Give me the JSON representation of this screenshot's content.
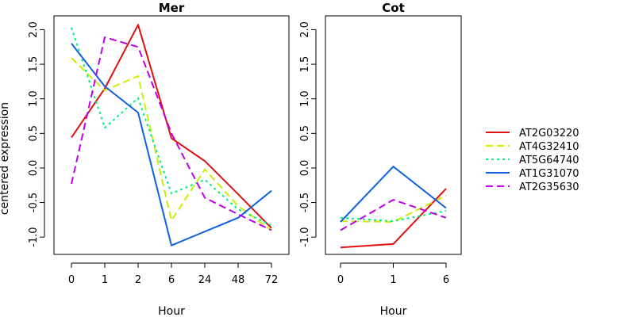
{
  "chart_data": [
    {
      "type": "line",
      "title": "Mer",
      "xlabel": "Hour",
      "ylabel": "centered expression",
      "categories": [
        "0",
        "1",
        "2",
        "6",
        "24",
        "48",
        "72"
      ],
      "ylim": [
        -1.25,
        2.2
      ],
      "yticks": [
        "-1.0",
        "-0.5",
        "0.0",
        "0.5",
        "1.0",
        "1.5",
        "2.0"
      ],
      "series": [
        {
          "name": "AT2G03220",
          "values": [
            0.44,
            1.15,
            2.07,
            0.43,
            0.1,
            -0.38,
            -0.87
          ]
        },
        {
          "name": "AT4G32410",
          "values": [
            1.59,
            1.12,
            1.33,
            -0.76,
            -0.02,
            -0.55,
            -0.9
          ]
        },
        {
          "name": "AT5G64740",
          "values": [
            2.03,
            0.58,
            1.01,
            -0.37,
            -0.17,
            -0.6,
            -0.83
          ]
        },
        {
          "name": "AT1G31070",
          "values": [
            1.8,
            1.18,
            0.8,
            -1.12,
            -0.92,
            -0.72,
            -0.33
          ]
        },
        {
          "name": "AT2G35630",
          "values": [
            -0.23,
            1.89,
            1.75,
            0.5,
            -0.43,
            -0.67,
            -0.9
          ]
        }
      ]
    },
    {
      "type": "line",
      "title": "Cot",
      "xlabel": "Hour",
      "categories": [
        "0",
        "1",
        "6"
      ],
      "ylim": [
        -1.25,
        2.2
      ],
      "yticks": [
        "-1.0",
        "-0.5",
        "0.0",
        "0.5",
        "1.0",
        "1.5",
        "2.0"
      ],
      "series": [
        {
          "name": "AT2G03220",
          "values": [
            -1.15,
            -1.1,
            -0.3
          ]
        },
        {
          "name": "AT4G32410",
          "values": [
            -0.77,
            -0.78,
            -0.4
          ]
        },
        {
          "name": "AT5G64740",
          "values": [
            -0.72,
            -0.77,
            -0.62
          ]
        },
        {
          "name": "AT1G31070",
          "values": [
            -0.78,
            0.02,
            -0.58
          ]
        },
        {
          "name": "AT2G35630",
          "values": [
            -0.9,
            -0.46,
            -0.72
          ]
        }
      ]
    }
  ],
  "legend": {
    "placement": "right",
    "items": [
      {
        "label": "AT2G03220",
        "color": "#e01010",
        "dash": "solid"
      },
      {
        "label": "AT4G32410",
        "color": "#c8f000",
        "dash": "dashed"
      },
      {
        "label": "AT5G64740",
        "color": "#00f080",
        "dash": "dotted"
      },
      {
        "label": "AT1G31070",
        "color": "#1060e0",
        "dash": "solid"
      },
      {
        "label": "AT2G35630",
        "color": "#c000e8",
        "dash": "dashed"
      }
    ]
  }
}
